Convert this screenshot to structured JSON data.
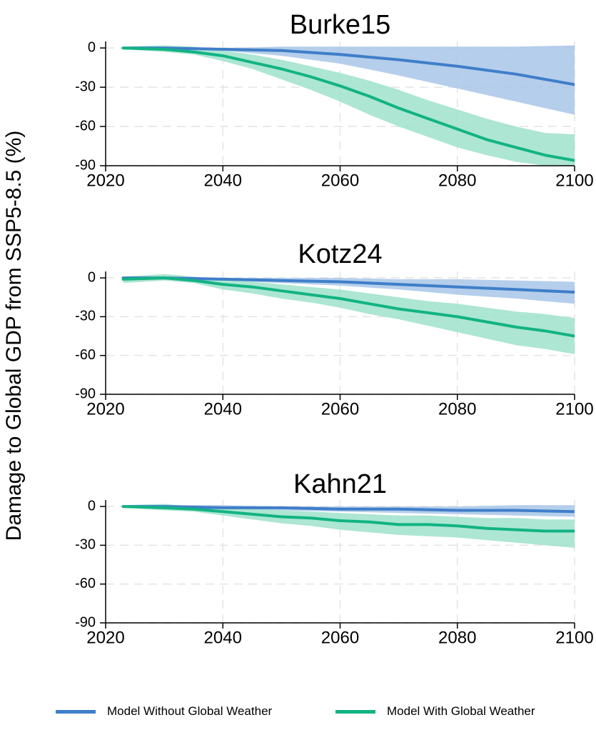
{
  "y_axis_label": "Damage to Global GDP from SSP5-8.5 (%)",
  "legend": [
    {
      "label": "Model Without Global Weather",
      "color": "#3f7ec9"
    },
    {
      "label": "Model With Global Weather",
      "color": "#12b383"
    }
  ],
  "colors": {
    "without_line": "#3f7ec9",
    "without_band": "#a8c5e8",
    "with_line": "#12b383",
    "with_band": "#9fe2cb",
    "grid": "#e4e4e4"
  },
  "chart_data": [
    {
      "type": "line",
      "title": "Burke15",
      "xlim": [
        2020,
        2100
      ],
      "ylim": [
        -90,
        5
      ],
      "xticks": [
        2020,
        2040,
        2060,
        2080,
        2100
      ],
      "yticks": [
        0,
        -30,
        -60,
        -90
      ],
      "grid": true,
      "series": [
        {
          "name": "Model Without Global Weather",
          "x": [
            2023,
            2030,
            2040,
            2050,
            2060,
            2070,
            2080,
            2090,
            2100
          ],
          "y": [
            0,
            0,
            -1,
            -2,
            -5,
            -9,
            -14,
            -20,
            -28
          ],
          "lower": [
            0,
            -1,
            -2,
            -6,
            -12,
            -21,
            -31,
            -41,
            -51
          ],
          "upper": [
            0,
            1,
            0,
            1,
            1,
            1,
            1,
            1,
            2
          ]
        },
        {
          "name": "Model With Global Weather",
          "x": [
            2023,
            2030,
            2035,
            2040,
            2045,
            2050,
            2055,
            2060,
            2065,
            2070,
            2075,
            2080,
            2085,
            2090,
            2095,
            2100
          ],
          "y": [
            0,
            -1,
            -3,
            -6,
            -11,
            -16,
            -22,
            -29,
            -37,
            -46,
            -54,
            -62,
            -70,
            -76,
            -82,
            -86
          ],
          "lower": [
            -1,
            -3,
            -5,
            -10,
            -16,
            -24,
            -32,
            -41,
            -51,
            -60,
            -68,
            -76,
            -82,
            -87,
            -90,
            -90
          ],
          "upper": [
            1,
            2,
            1,
            -2,
            -5,
            -9,
            -14,
            -19,
            -25,
            -32,
            -40,
            -47,
            -54,
            -60,
            -65,
            -66
          ]
        }
      ]
    },
    {
      "type": "line",
      "title": "Kotz24",
      "xlim": [
        2020,
        2100
      ],
      "ylim": [
        -90,
        5
      ],
      "xticks": [
        2020,
        2040,
        2060,
        2080,
        2100
      ],
      "yticks": [
        0,
        -30,
        -60,
        -90
      ],
      "grid": true,
      "series": [
        {
          "name": "Model Without Global Weather",
          "x": [
            2023,
            2030,
            2040,
            2050,
            2060,
            2070,
            2080,
            2090,
            2100
          ],
          "y": [
            0,
            0,
            -1,
            -2,
            -3,
            -5,
            -7,
            -9,
            -11
          ],
          "lower": [
            0,
            -1,
            -2,
            -4,
            -6,
            -9,
            -13,
            -16,
            -20
          ],
          "upper": [
            0,
            1,
            0,
            0,
            0,
            -1,
            -1,
            -2,
            -3
          ]
        },
        {
          "name": "Model With Global Weather",
          "x": [
            2023,
            2030,
            2035,
            2040,
            2045,
            2050,
            2055,
            2060,
            2065,
            2070,
            2075,
            2080,
            2085,
            2090,
            2095,
            2100
          ],
          "y": [
            -1,
            0,
            -2,
            -5,
            -7,
            -10,
            -13,
            -16,
            -20,
            -24,
            -27,
            -30,
            -34,
            -38,
            -41,
            -45
          ],
          "lower": [
            -4,
            -2,
            -4,
            -9,
            -12,
            -16,
            -19,
            -23,
            -28,
            -32,
            -37,
            -42,
            -47,
            -52,
            -55,
            -59
          ],
          "upper": [
            1,
            3,
            1,
            -1,
            -3,
            -5,
            -7,
            -9,
            -12,
            -15,
            -18,
            -20,
            -23,
            -26,
            -28,
            -31
          ]
        }
      ]
    },
    {
      "type": "line",
      "title": "Kahn21",
      "xlim": [
        2020,
        2100
      ],
      "ylim": [
        -90,
        5
      ],
      "xticks": [
        2020,
        2040,
        2060,
        2080,
        2100
      ],
      "yticks": [
        0,
        -30,
        -60,
        -90
      ],
      "grid": true,
      "series": [
        {
          "name": "Model Without Global Weather",
          "x": [
            2023,
            2030,
            2040,
            2050,
            2060,
            2070,
            2080,
            2090,
            2100
          ],
          "y": [
            0,
            0,
            -1,
            -1,
            -2,
            -2,
            -3,
            -3,
            -4
          ],
          "lower": [
            0,
            -1,
            -2,
            -3,
            -4,
            -5,
            -6,
            -7,
            -8
          ],
          "upper": [
            0,
            1,
            1,
            0,
            0,
            0,
            0,
            1,
            1
          ]
        },
        {
          "name": "Model With Global Weather",
          "x": [
            2023,
            2030,
            2035,
            2040,
            2045,
            2050,
            2055,
            2060,
            2065,
            2070,
            2075,
            2080,
            2085,
            2090,
            2095,
            2100
          ],
          "y": [
            0,
            -1,
            -2,
            -4,
            -6,
            -8,
            -9,
            -11,
            -12,
            -14,
            -14,
            -15,
            -17,
            -18,
            -19,
            -19
          ],
          "lower": [
            -1,
            -3,
            -4,
            -7,
            -10,
            -13,
            -15,
            -18,
            -20,
            -22,
            -23,
            -24,
            -26,
            -28,
            -30,
            -32
          ],
          "upper": [
            1,
            2,
            0,
            -1,
            -2,
            -3,
            -4,
            -5,
            -6,
            -7,
            -7,
            -8,
            -9,
            -9,
            -10,
            -10
          ]
        }
      ]
    }
  ]
}
